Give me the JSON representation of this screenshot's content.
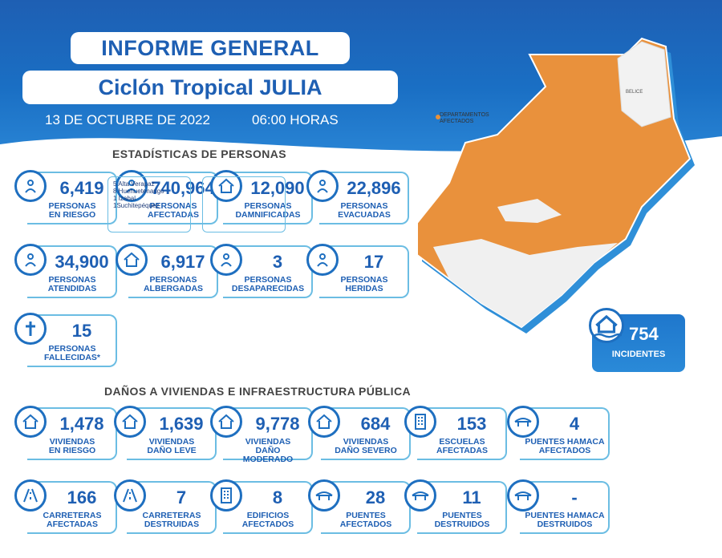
{
  "header": {
    "title": "INFORME GENERAL",
    "subtitle": "Ciclón Tropical JULIA",
    "date": "13 DE OCTUBRE DE 2022",
    "hour": "06:00 HORAS"
  },
  "map": {
    "legend": "DEPARTAMENTOS\nAFECTADOS",
    "affected_color": "#e8913a",
    "region_text": "BELICE"
  },
  "persons": {
    "section_title": "ESTADÍSTICAS DE PERSONAS",
    "cards": [
      {
        "value": "6,419",
        "label": "PERSONAS\nEN RIESGO",
        "icon": "people-rain-icon"
      },
      {
        "value": "740,964",
        "label": "PERSONAS\nAFECTADAS",
        "icon": "person-wind-icon"
      },
      {
        "value": "12,090",
        "label": "PERSONAS\nDAMNIFICADAS",
        "icon": "person-house-icon"
      },
      {
        "value": "22,896",
        "label": "PERSONAS\nEVACUADAS",
        "icon": "running-person-icon"
      },
      {
        "value": "34,900",
        "label": "PERSONAS\nATENDIDAS",
        "icon": "assisted-person-icon"
      },
      {
        "value": "6,917",
        "label": "PERSONAS\nALBERGADAS",
        "icon": "shelter-icon"
      },
      {
        "value": "3",
        "label": "PERSONAS\nDESAPARECIDAS",
        "icon": "missing-person-icon"
      },
      {
        "value": "17",
        "label": "PERSONAS\nHERIDAS",
        "icon": "injured-person-icon"
      },
      {
        "value": "15",
        "label": "PERSONAS\nFALLECIDAS*",
        "icon": "cross-icon"
      }
    ],
    "fatalities_detail": [
      "5 Alta Verapaz",
      "8 Huehuetenango",
      "1 Izabal",
      "1Suchitepéquez"
    ],
    "empty_box_text": "-"
  },
  "incidents": {
    "value": "754",
    "label": "INCIDENTES"
  },
  "infrastructure": {
    "section_title": "DAÑOS A VIVIENDAS E INFRAESTRUCTURA PÚBLICA",
    "cards": [
      {
        "value": "1,478",
        "label": "VIVIENDAS\nEN RIESGO",
        "icon": "house-risk-icon"
      },
      {
        "value": "1,639",
        "label": "VIVIENDAS\nDAÑO LEVE",
        "icon": "house-icon"
      },
      {
        "value": "9,778",
        "label": "VIVIENDAS\nDAÑO\nMODERADO",
        "icon": "house-damage-icon"
      },
      {
        "value": "684",
        "label": "VIVIENDAS\nDAÑO SEVERO",
        "icon": "house-severe-icon"
      },
      {
        "value": "153",
        "label": "ESCUELAS\nAFECTADAS",
        "icon": "school-icon"
      },
      {
        "value": "4",
        "label": "PUENTES HAMACA\nAFECTADOS",
        "icon": "hanging-bridge-icon"
      },
      {
        "value": "166",
        "label": "CARRETERAS\nAFECTADAS",
        "icon": "road-icon"
      },
      {
        "value": "7",
        "label": "CARRETERAS\nDESTRUIDAS",
        "icon": "road-destroyed-icon"
      },
      {
        "value": "8",
        "label": "EDIFICIOS\nAFECTADOS",
        "icon": "building-icon"
      },
      {
        "value": "28",
        "label": "PUENTES\nAFECTADOS",
        "icon": "bridge-car-icon"
      },
      {
        "value": "11",
        "label": "PUENTES\nDESTRUIDOS",
        "icon": "bridge-destroyed-icon"
      },
      {
        "value": "-",
        "label": "PUENTES HAMACA\nDESTRUIDOS",
        "icon": "hanging-bridge-destroyed-icon"
      }
    ]
  }
}
